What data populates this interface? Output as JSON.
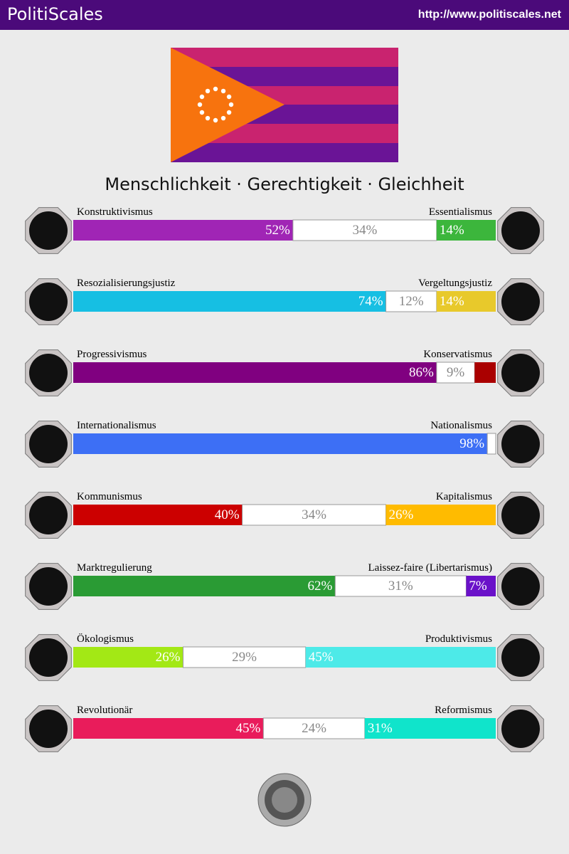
{
  "header": {
    "title": "PolitiScales",
    "url": "http://www.politiscales.net"
  },
  "motto": "Menschlichkeit · Gerechtigkeit · Gleichheit",
  "axes": [
    {
      "left": "Konstruktivismus",
      "right": "Essentialismus",
      "values": [
        52,
        34,
        14
      ],
      "value_labels": [
        "52%",
        "34%",
        "14%"
      ],
      "colors": [
        "#a025b5",
        "#ffffff",
        "#3cb63c"
      ]
    },
    {
      "left": "Resozialisierungsjustiz",
      "right": "Vergeltungsjustiz",
      "values": [
        74,
        12,
        14
      ],
      "value_labels": [
        "74%",
        "12%",
        "14%"
      ],
      "colors": [
        "#16bfe3",
        "#ffffff",
        "#e8c92b"
      ]
    },
    {
      "left": "Progressivismus",
      "right": "Konservatismus",
      "values": [
        86,
        9,
        5
      ],
      "value_labels": [
        "86%",
        "9%",
        null
      ],
      "colors": [
        "#800080",
        "#ffffff",
        "#aa0000"
      ]
    },
    {
      "left": "Internationalismus",
      "right": "Nationalismus",
      "values": [
        98,
        2,
        0
      ],
      "value_labels": [
        "98%",
        null,
        null
      ],
      "colors": [
        "#3d6ff5",
        "#ffffff",
        "#ff8800"
      ]
    },
    {
      "left": "Kommunismus",
      "right": "Kapitalismus",
      "values": [
        40,
        34,
        26
      ],
      "value_labels": [
        "40%",
        "34%",
        "26%"
      ],
      "colors": [
        "#cc0000",
        "#ffffff",
        "#ffbb00"
      ]
    },
    {
      "left": "Marktregulierung",
      "right": "Laissez-faire (Libertarismus)",
      "values": [
        62,
        31,
        7
      ],
      "value_labels": [
        "62%",
        "31%",
        "7%"
      ],
      "colors": [
        "#2a9b34",
        "#ffffff",
        "#6a11c9"
      ]
    },
    {
      "left": "Ökologismus",
      "right": "Produktivismus",
      "values": [
        26,
        29,
        45
      ],
      "value_labels": [
        "26%",
        "29%",
        "45%"
      ],
      "colors": [
        "#a3e815",
        "#ffffff",
        "#4deae8"
      ]
    },
    {
      "left": "Revolutionär",
      "right": "Reformismus",
      "values": [
        45,
        24,
        31
      ],
      "value_labels": [
        "45%",
        "24%",
        "31%"
      ],
      "colors": [
        "#e91c5b",
        "#ffffff",
        "#10e4cb"
      ]
    }
  ]
}
